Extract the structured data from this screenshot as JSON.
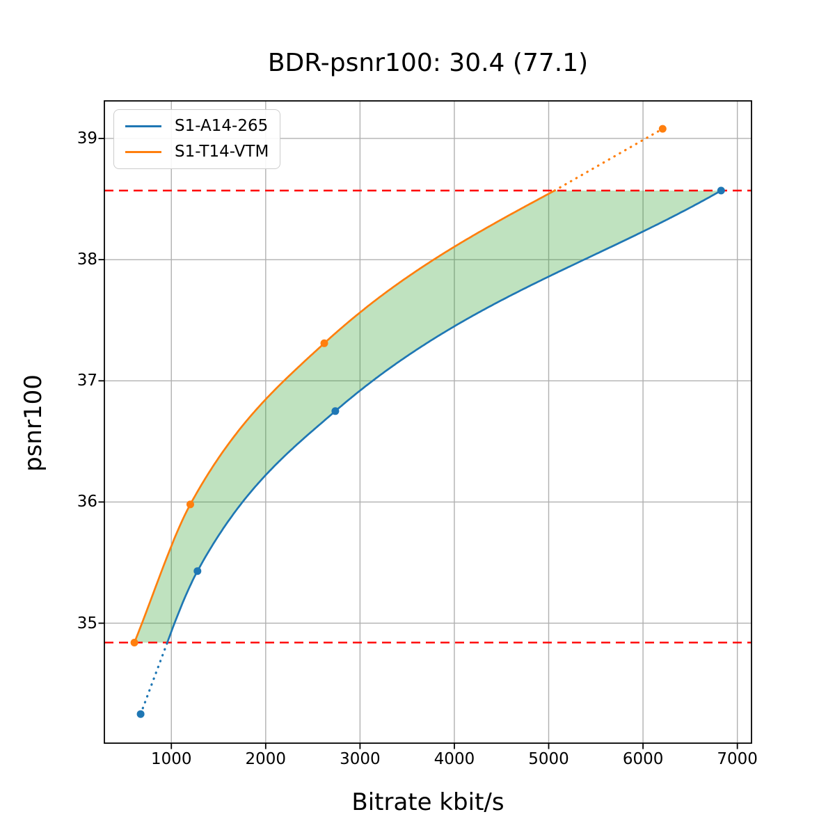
{
  "chart_data": {
    "type": "line",
    "title": "BDR-psnr100: 30.4 (77.1)",
    "xlabel": "Bitrate kbit/s",
    "ylabel": "psnr100",
    "xlim": [
      290,
      7150
    ],
    "ylim": [
      34.01,
      39.31
    ],
    "xticks": [
      1000,
      2000,
      3000,
      4000,
      5000,
      6000,
      7000
    ],
    "yticks": [
      35,
      36,
      37,
      38,
      39
    ],
    "grid": true,
    "grid_color": "#b0b0b0",
    "legend_position": "upper left",
    "series": [
      {
        "name": "S1-A14-265",
        "color": "#1f77b4",
        "points": [
          [
            674,
            34.25
          ],
          [
            1277,
            35.43
          ],
          [
            2738,
            36.75
          ],
          [
            6828,
            38.57
          ]
        ]
      },
      {
        "name": "S1-T14-VTM",
        "color": "#ff7f0e",
        "points": [
          [
            608,
            34.84
          ],
          [
            1201,
            35.98
          ],
          [
            2621,
            37.31
          ],
          [
            6208,
            39.08
          ]
        ]
      }
    ],
    "hlines": [
      {
        "y": 38.57,
        "color": "#ff0000",
        "style": "dashed"
      },
      {
        "y": 34.84,
        "color": "#ff0000",
        "style": "dashed"
      }
    ],
    "solid_interval": [
      34.84,
      38.57
    ],
    "fill_between": {
      "color": "#2ca02c",
      "alpha": 0.3
    }
  }
}
